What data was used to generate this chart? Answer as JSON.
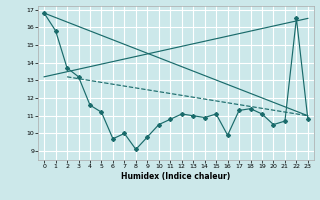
{
  "xlabel": "Humidex (Indice chaleur)",
  "bg_color": "#cce8ea",
  "grid_color": "#ffffff",
  "line_color": "#1a6b6b",
  "xlim": [
    -0.5,
    23.5
  ],
  "ylim": [
    8.5,
    17.2
  ],
  "xticks": [
    0,
    1,
    2,
    3,
    4,
    5,
    6,
    7,
    8,
    9,
    10,
    11,
    12,
    13,
    14,
    15,
    16,
    17,
    18,
    19,
    20,
    21,
    22,
    23
  ],
  "yticks": [
    9,
    10,
    11,
    12,
    13,
    14,
    15,
    16,
    17
  ],
  "zigzag_x": [
    0,
    1,
    2,
    3,
    4,
    5,
    6,
    7,
    8,
    9,
    10,
    11,
    12,
    13,
    14,
    15,
    16,
    17,
    18,
    19,
    20,
    21,
    22,
    23
  ],
  "zigzag_y": [
    16.8,
    15.8,
    13.7,
    13.2,
    11.6,
    11.2,
    9.7,
    10.0,
    9.1,
    9.8,
    10.5,
    10.8,
    11.1,
    11.0,
    10.9,
    11.1,
    9.9,
    11.3,
    11.4,
    11.1,
    10.5,
    10.7,
    16.5,
    10.8
  ],
  "line1_x": [
    0,
    23
  ],
  "line1_y": [
    16.8,
    11.0
  ],
  "line2_x": [
    0,
    23
  ],
  "line2_y": [
    13.2,
    16.5
  ],
  "line3_x": [
    2,
    23
  ],
  "line3_y": [
    13.2,
    11.0
  ]
}
